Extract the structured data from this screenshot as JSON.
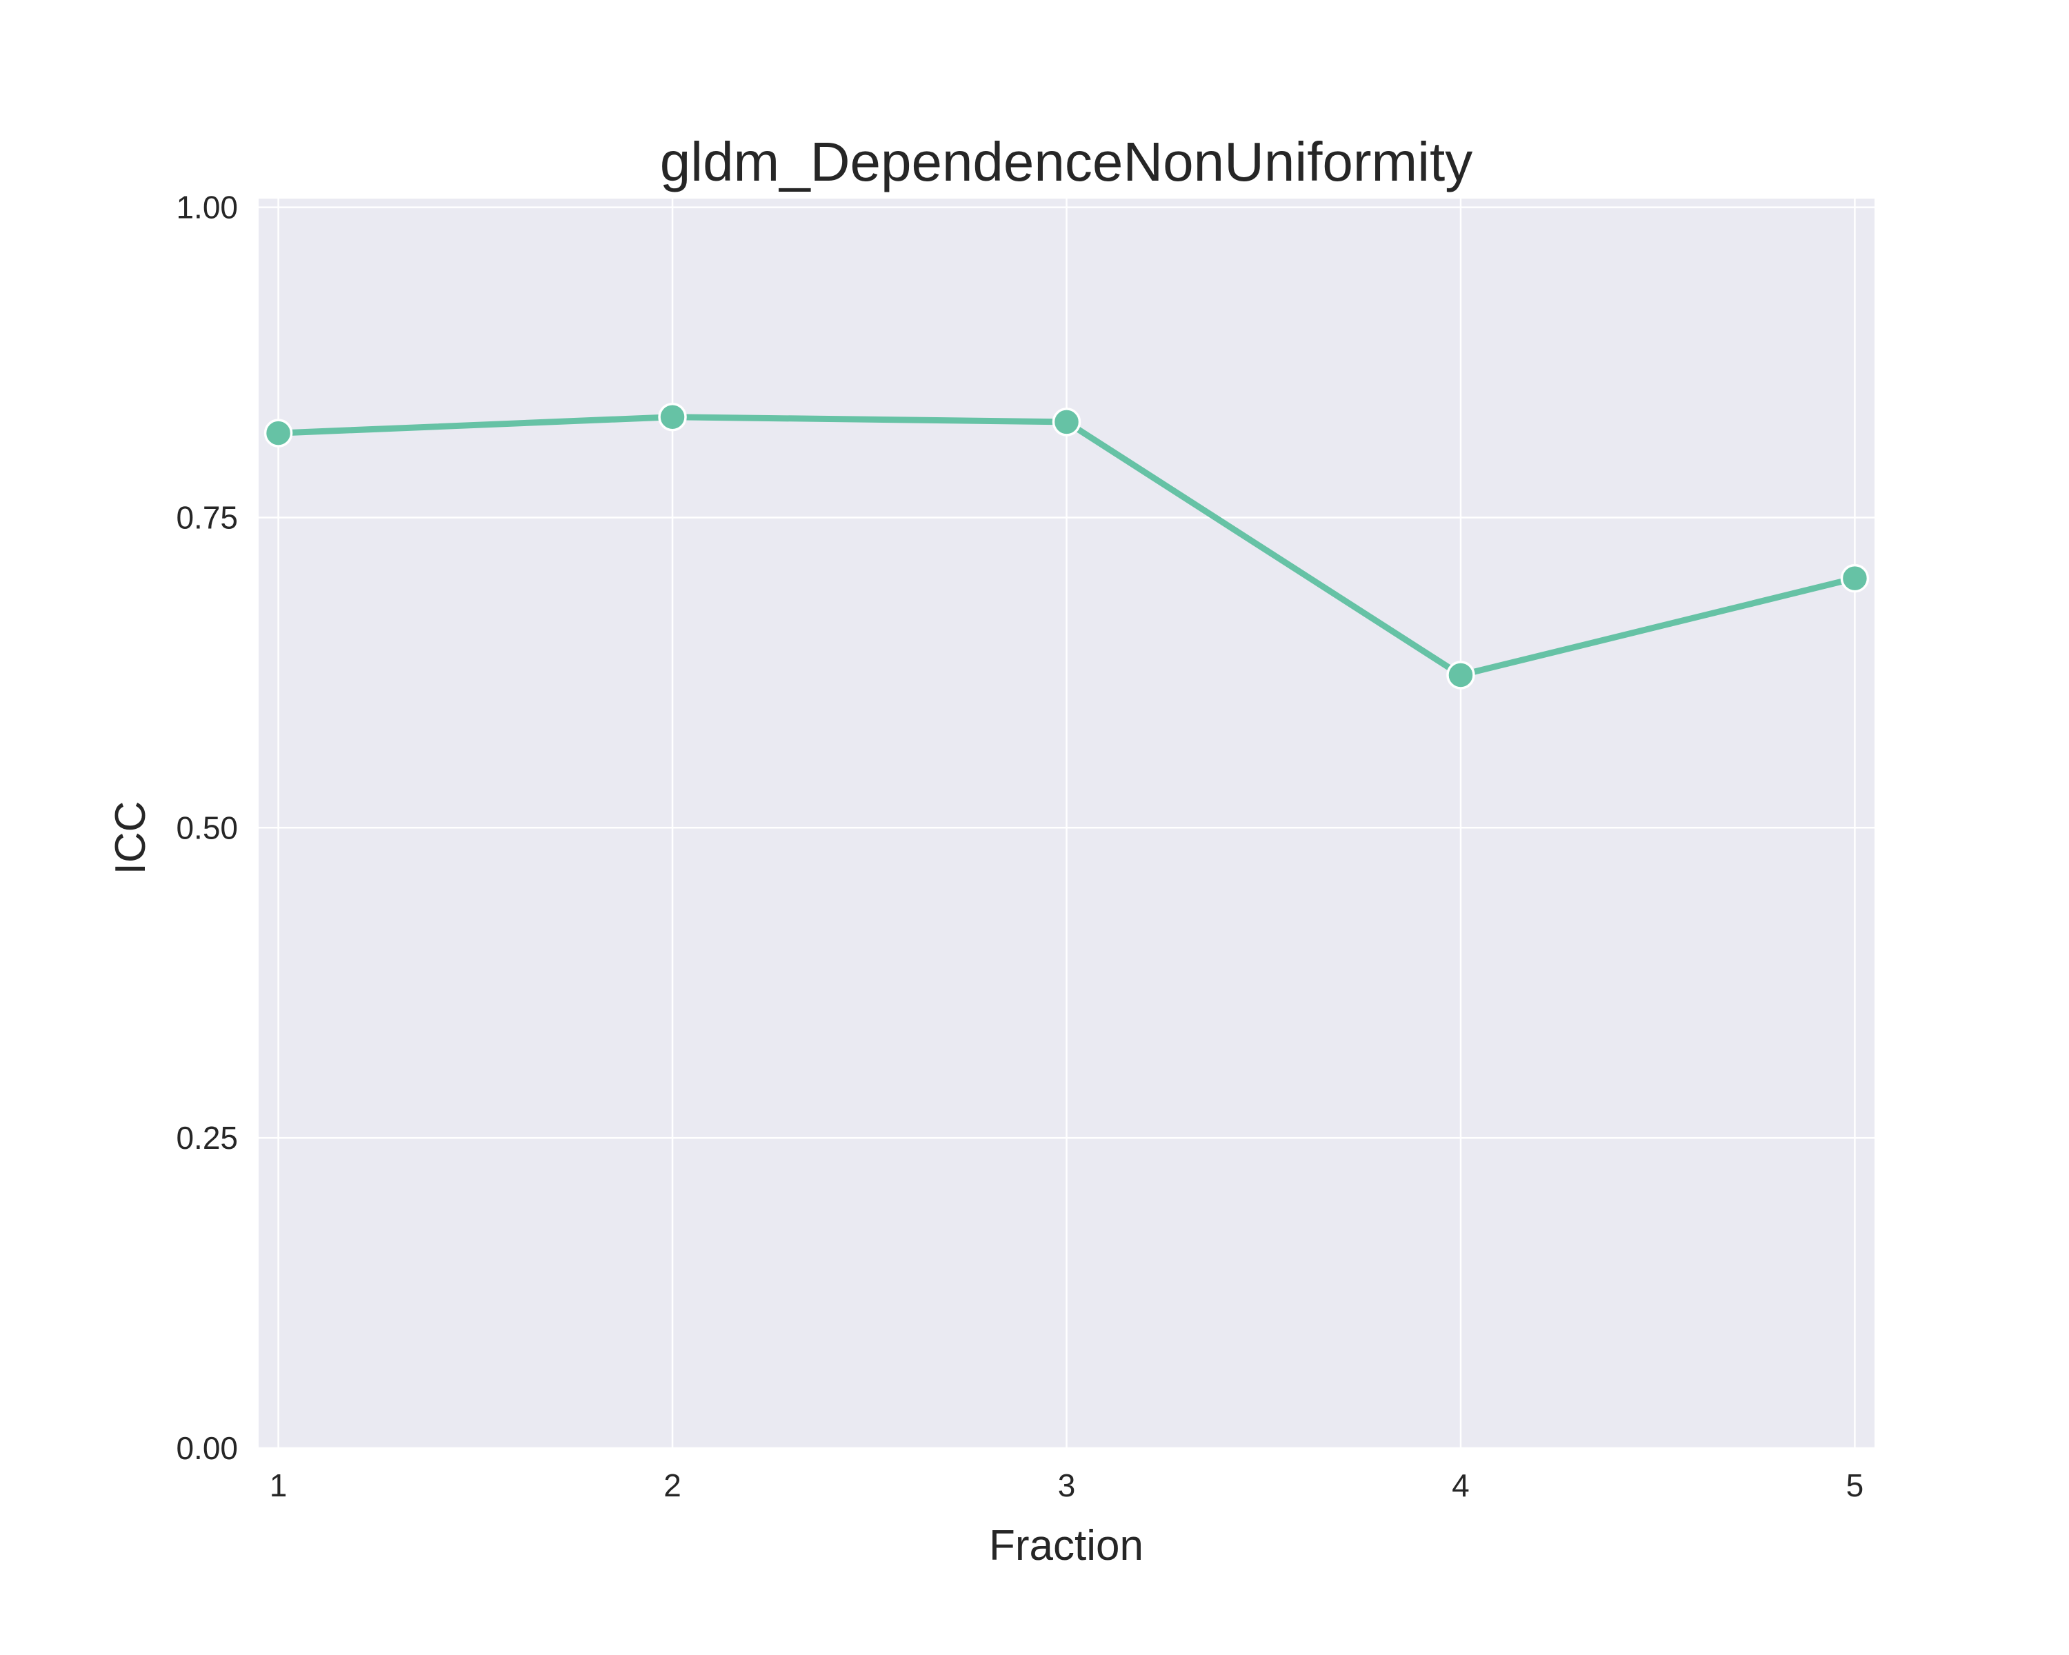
{
  "chart_data": {
    "type": "line",
    "title": "gldm_DependenceNonUniformity",
    "xlabel": "Fraction",
    "ylabel": "ICC",
    "x": [
      1,
      2,
      3,
      4,
      5
    ],
    "x_tick_labels": [
      "1",
      "2",
      "3",
      "4",
      "5"
    ],
    "y_ticks": [
      0.0,
      0.25,
      0.5,
      0.75,
      1.0
    ],
    "y_tick_labels": [
      "0.00",
      "0.25",
      "0.50",
      "0.75",
      "1.00"
    ],
    "xlim": [
      0.95,
      5.05
    ],
    "ylim": [
      0.0,
      1.007
    ],
    "grid": true,
    "legend": "none",
    "series": [
      {
        "values": [
          0.818,
          0.831,
          0.827,
          0.623,
          0.701
        ],
        "color": "#66c2a5"
      }
    ],
    "colors": {
      "background": "#eaeaf2",
      "grid": "#ffffff",
      "line": "#66c2a5"
    }
  }
}
